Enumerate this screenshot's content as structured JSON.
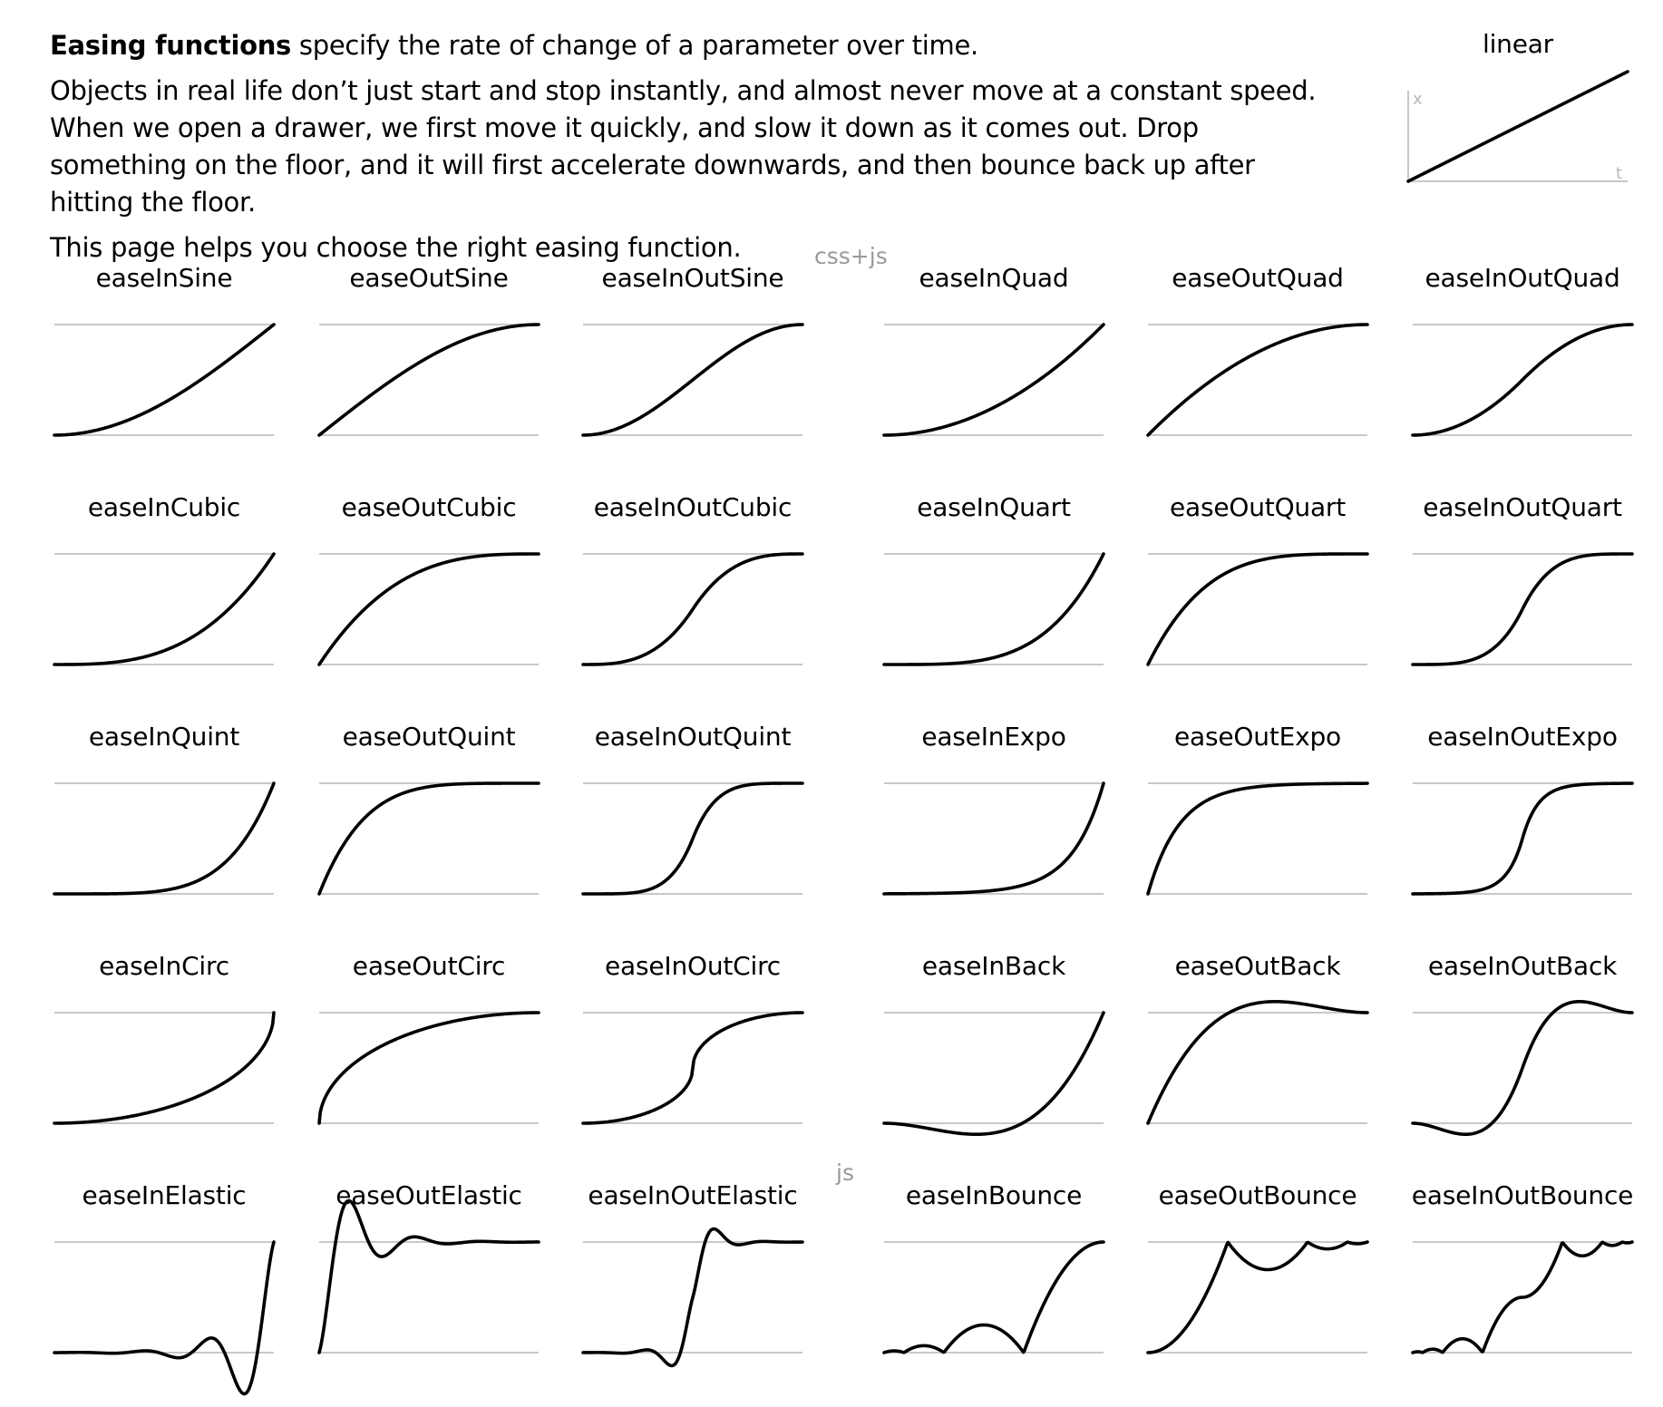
{
  "intro": {
    "bold_lead": "Easing functions",
    "line1_rest": " specify the rate of change of a parameter over time.",
    "paragraph2": "Objects in real life don’t just start and stop instantly, and almost never move at a constant speed. When we open a drawer, we first move it quickly, and slow it down as it comes out. Drop something on the floor, and it will first accelerate downwards, and then bounce back up after hitting the floor.",
    "paragraph3": "This page helps you choose the right easing function."
  },
  "linear": {
    "label": "linear",
    "x_axis_letter": "t",
    "y_axis_letter": "x"
  },
  "groups": {
    "css_js": "css+js",
    "js": "js"
  },
  "easings": [
    "easeInSine",
    "easeOutSine",
    "easeInOutSine",
    "easeInQuad",
    "easeOutQuad",
    "easeInOutQuad",
    "easeInCubic",
    "easeOutCubic",
    "easeInOutCubic",
    "easeInQuart",
    "easeOutQuart",
    "easeInOutQuart",
    "easeInQuint",
    "easeOutQuint",
    "easeInOutQuint",
    "easeInExpo",
    "easeOutExpo",
    "easeInOutExpo",
    "easeInCirc",
    "easeOutCirc",
    "easeInOutCirc",
    "easeInBack",
    "easeOutBack",
    "easeInOutBack",
    "easeInElastic",
    "easeOutElastic",
    "easeInOutElastic",
    "easeInBounce",
    "easeOutBounce",
    "easeInOutBounce"
  ]
}
